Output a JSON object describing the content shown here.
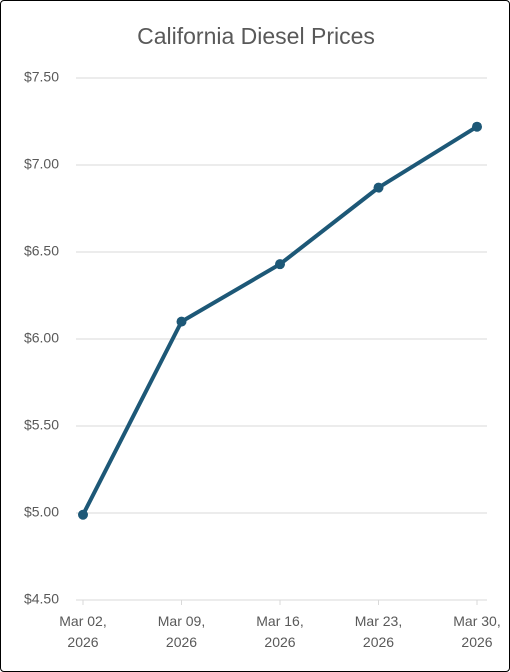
{
  "chart_data": {
    "type": "line",
    "title": "California Diesel Prices",
    "categories": [
      "Mar 02, 2026",
      "Mar 09, 2026",
      "Mar 16, 2026",
      "Mar 23, 2026",
      "Mar 30, 2026"
    ],
    "series": [
      {
        "name": "California Diesel Prices",
        "color": "#1d5877",
        "values": [
          4.99,
          6.1,
          6.43,
          6.87,
          7.22
        ]
      }
    ],
    "ylim": [
      4.5,
      7.5
    ],
    "yticks": [
      {
        "value": 4.5,
        "label": "$4.50"
      },
      {
        "value": 5,
        "label": "$5.00"
      },
      {
        "value": 5.5,
        "label": "$5.50"
      },
      {
        "value": 6,
        "label": "$6.00"
      },
      {
        "value": 6.5,
        "label": "$6.50"
      },
      {
        "value": 7,
        "label": "$7.00"
      },
      {
        "value": 7.5,
        "label": "$7.50"
      }
    ],
    "grid": true
  }
}
